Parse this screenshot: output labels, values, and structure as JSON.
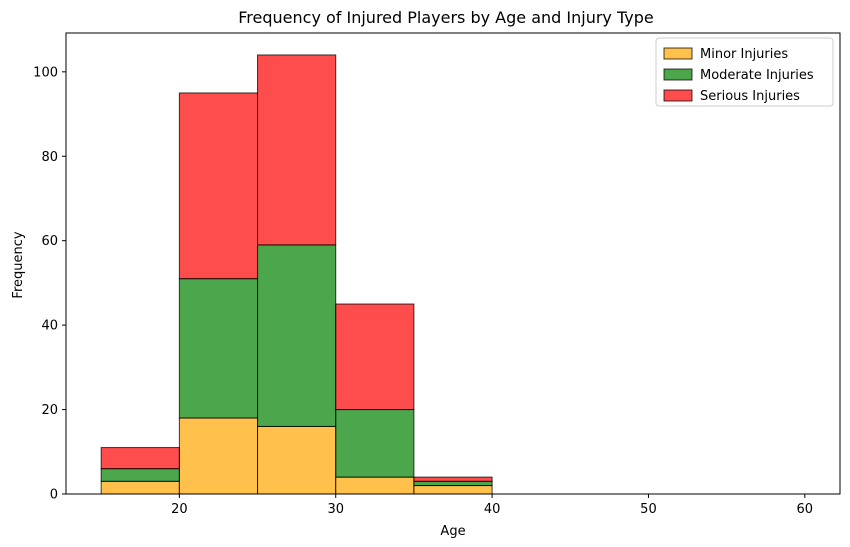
{
  "chart_data": {
    "type": "bar",
    "subtype": "stacked-histogram",
    "title": "Frequency of Injured Players by Age and Injury Type",
    "xlabel": "Age",
    "ylabel": "Frequency",
    "xlim": [
      12.75,
      62.25
    ],
    "ylim": [
      0,
      109.2
    ],
    "xticks": [
      20,
      30,
      40,
      50,
      60
    ],
    "yticks": [
      0,
      20,
      40,
      60,
      80,
      100
    ],
    "bin_edges": [
      15,
      20,
      25,
      30,
      35,
      40,
      45,
      50,
      55,
      60
    ],
    "series": [
      {
        "name": "Minor Injuries",
        "color": "#ffa500",
        "values": [
          3,
          18,
          16,
          4,
          2,
          0,
          0,
          0,
          0
        ]
      },
      {
        "name": "Moderate Injuries",
        "color": "#008000",
        "values": [
          3,
          33,
          43,
          16,
          1,
          0,
          0,
          0,
          0
        ]
      },
      {
        "name": "Serious Injuries",
        "color": "#ff0000",
        "values": [
          5,
          44,
          45,
          25,
          1,
          0,
          0,
          0,
          0
        ]
      }
    ],
    "bar_alpha": 0.7,
    "edge_color": "#000000",
    "grid": false,
    "legend_position": "top-right"
  }
}
